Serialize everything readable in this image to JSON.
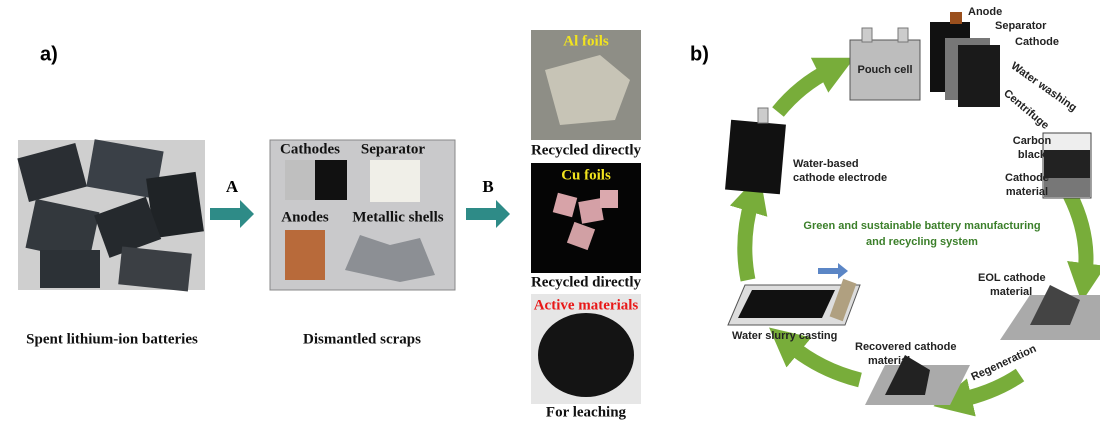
{
  "panel_a": {
    "label": "a)",
    "step_a": "A",
    "step_b": "B",
    "batteries": {
      "caption": "Spent lithium-ion batteries"
    },
    "scraps": {
      "caption": "Dismantled scraps",
      "cathodes": "Cathodes",
      "separator": "Separator",
      "anodes": "Anodes",
      "shells": "Metallic shells"
    },
    "products": [
      {
        "title": "Al foils",
        "caption": "Recycled directly"
      },
      {
        "title": "Cu foils",
        "caption": "Recycled directly"
      },
      {
        "title": "Active materials",
        "caption": "For leaching"
      }
    ]
  },
  "panel_b": {
    "label": "b)",
    "center_text": [
      "Green and sustainable battery manufacturing",
      "and recycling system"
    ],
    "pouch_cell": "Pouch cell",
    "anode": "Anode",
    "separator": "Separator",
    "cathode": "Cathode",
    "water_washing": "Water washing",
    "centrifuge": "Centrifuge",
    "carbon_black": [
      "Carbon",
      "black"
    ],
    "cathode_material": [
      "Cathode",
      "material"
    ],
    "eol": [
      "EOL cathode",
      "material"
    ],
    "regeneration": "Regeneration",
    "recovered": [
      "Recovered cathode",
      "material"
    ],
    "casting": "Water slurry casting",
    "electrode": [
      "Water-based",
      "cathode electrode"
    ]
  }
}
